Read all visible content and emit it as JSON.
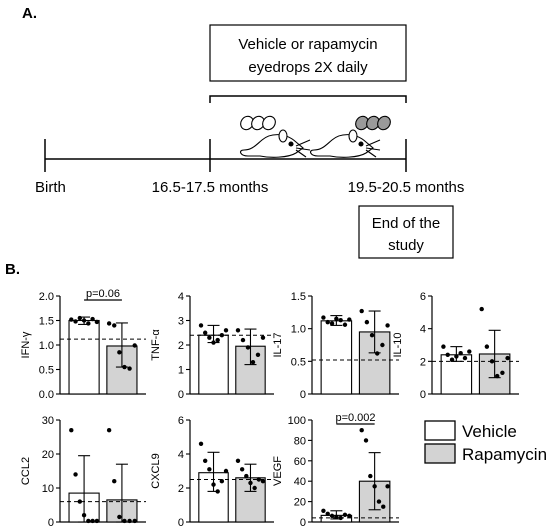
{
  "panel_a": {
    "label": "A.",
    "treatment_box": [
      "Vehicle or rapamycin",
      "eyedrops 2X daily"
    ],
    "timeline": [
      "Birth",
      "16.5-17.5 months",
      "19.5-20.5 months"
    ],
    "end_box": [
      "End of the",
      "study"
    ]
  },
  "panel_b": {
    "label": "B."
  },
  "legend": {
    "vehicle": "Vehicle",
    "rapamycin": "Rapamycin"
  },
  "colors": {
    "vehicle_fill": "#ffffff",
    "rapamycin_fill": "#d3d3d3",
    "stroke": "#000000"
  },
  "chart_data": [
    {
      "type": "bar",
      "ylabel": "IFN-γ",
      "ylim": [
        0,
        2.0
      ],
      "yticks": [
        {
          "value": 0,
          "label": "0.0"
        },
        {
          "value": 0.5,
          "label": "0.5"
        },
        {
          "value": 1.0,
          "label": "1.0"
        },
        {
          "value": 1.5,
          "label": "1.5"
        },
        {
          "value": 2.0,
          "label": "2.0"
        }
      ],
      "series": [
        {
          "name": "Vehicle",
          "mean": 1.5,
          "sd": [
            1.42,
            1.57
          ],
          "points": [
            1.52,
            1.48,
            1.55,
            1.5,
            1.44,
            1.53,
            1.47
          ]
        },
        {
          "name": "Rapamycin",
          "mean": 0.98,
          "sd": [
            0.55,
            1.45
          ],
          "points": [
            1.44,
            1.4,
            0.85,
            0.55,
            0.52,
            0.99
          ]
        }
      ],
      "reference": 1.12,
      "significance": "p=0.06"
    },
    {
      "type": "bar",
      "ylabel": "TNF-α",
      "ylim": [
        0,
        4
      ],
      "yticks": [
        {
          "value": 0,
          "label": "0"
        },
        {
          "value": 1,
          "label": "1"
        },
        {
          "value": 2,
          "label": "2"
        },
        {
          "value": 3,
          "label": "3"
        },
        {
          "value": 4,
          "label": "4"
        }
      ],
      "series": [
        {
          "name": "Vehicle",
          "mean": 2.4,
          "sd": [
            2.1,
            2.8
          ],
          "points": [
            2.8,
            2.5,
            2.3,
            2.1,
            2.2,
            2.4,
            2.6
          ]
        },
        {
          "name": "Rapamycin",
          "mean": 1.95,
          "sd": [
            1.2,
            2.65
          ],
          "points": [
            2.6,
            2.2,
            1.9,
            1.3,
            1.6,
            2.3
          ]
        }
      ],
      "reference": 2.4
    },
    {
      "type": "bar",
      "ylabel": "IL-17",
      "ylim": [
        0,
        1.5
      ],
      "yticks": [
        {
          "value": 0,
          "label": "0"
        },
        {
          "value": 0.5,
          "label": "0.5"
        },
        {
          "value": 1.0,
          "label": "1.0"
        },
        {
          "value": 1.5,
          "label": "1.5"
        }
      ],
      "series": [
        {
          "name": "Vehicle",
          "mean": 1.12,
          "sd": [
            1.05,
            1.2
          ],
          "points": [
            1.17,
            1.1,
            1.08,
            1.15,
            1.13,
            1.06,
            1.14
          ]
        },
        {
          "name": "Rapamycin",
          "mean": 0.95,
          "sd": [
            0.63,
            1.27
          ],
          "points": [
            1.27,
            1.1,
            0.9,
            0.62,
            0.75,
            1.05
          ]
        }
      ],
      "reference": 0.52
    },
    {
      "type": "bar",
      "ylabel": "IL-10",
      "ylim": [
        0,
        6
      ],
      "yticks": [
        {
          "value": 0,
          "label": "0"
        },
        {
          "value": 2,
          "label": "2"
        },
        {
          "value": 4,
          "label": "4"
        },
        {
          "value": 6,
          "label": "6"
        }
      ],
      "series": [
        {
          "name": "Vehicle",
          "mean": 2.4,
          "sd": [
            2.0,
            2.9
          ],
          "points": [
            2.9,
            2.4,
            2.1,
            2.3,
            2.5,
            2.2,
            2.6
          ]
        },
        {
          "name": "Rapamycin",
          "mean": 2.45,
          "sd": [
            1.0,
            3.9
          ],
          "points": [
            5.2,
            2.9,
            2.0,
            1.1,
            1.3,
            2.2
          ]
        }
      ],
      "reference": 2.0
    },
    {
      "type": "bar",
      "ylabel": "CCL2",
      "ylim": [
        0,
        30
      ],
      "yticks": [
        {
          "value": 0,
          "label": "0"
        },
        {
          "value": 10,
          "label": "10"
        },
        {
          "value": 20,
          "label": "20"
        },
        {
          "value": 30,
          "label": "30"
        }
      ],
      "series": [
        {
          "name": "Vehicle",
          "mean": 8.5,
          "sd": [
            0,
            19.5
          ],
          "points": [
            27,
            14,
            6,
            2,
            0.3,
            0.3,
            0.3
          ]
        },
        {
          "name": "Rapamycin",
          "mean": 6.5,
          "sd": [
            0,
            17
          ],
          "points": [
            27,
            12,
            1.5,
            0.3,
            0.3,
            0.3
          ]
        }
      ],
      "reference": 6.0
    },
    {
      "type": "bar",
      "ylabel": "CXCL9",
      "ylim": [
        0,
        6
      ],
      "yticks": [
        {
          "value": 0,
          "label": "0"
        },
        {
          "value": 2,
          "label": "2"
        },
        {
          "value": 4,
          "label": "4"
        },
        {
          "value": 6,
          "label": "6"
        }
      ],
      "series": [
        {
          "name": "Vehicle",
          "mean": 2.9,
          "sd": [
            1.8,
            4.1
          ],
          "points": [
            4.6,
            3.6,
            3.1,
            2.2,
            1.8,
            2.4,
            3.0
          ]
        },
        {
          "name": "Rapamycin",
          "mean": 2.6,
          "sd": [
            1.8,
            3.4
          ],
          "points": [
            3.6,
            3.1,
            2.7,
            2.3,
            2.0,
            2.5,
            2.4
          ]
        }
      ],
      "reference": 2.5
    },
    {
      "type": "bar",
      "ylabel": "VEGF",
      "ylim": [
        0,
        100
      ],
      "yticks": [
        {
          "value": 0,
          "label": "0"
        },
        {
          "value": 20,
          "label": "20"
        },
        {
          "value": 40,
          "label": "40"
        },
        {
          "value": 60,
          "label": "60"
        },
        {
          "value": 80,
          "label": "80"
        },
        {
          "value": 100,
          "label": "100"
        }
      ],
      "series": [
        {
          "name": "Vehicle",
          "mean": 6.5,
          "sd": [
            3,
            11
          ],
          "points": [
            11,
            8,
            6,
            5,
            4,
            7,
            6
          ]
        },
        {
          "name": "Rapamycin",
          "mean": 40,
          "sd": [
            12,
            68
          ],
          "points": [
            90,
            80,
            45,
            35,
            20,
            15,
            35
          ]
        }
      ],
      "reference": 4.0,
      "significance": "p=0.002"
    }
  ]
}
